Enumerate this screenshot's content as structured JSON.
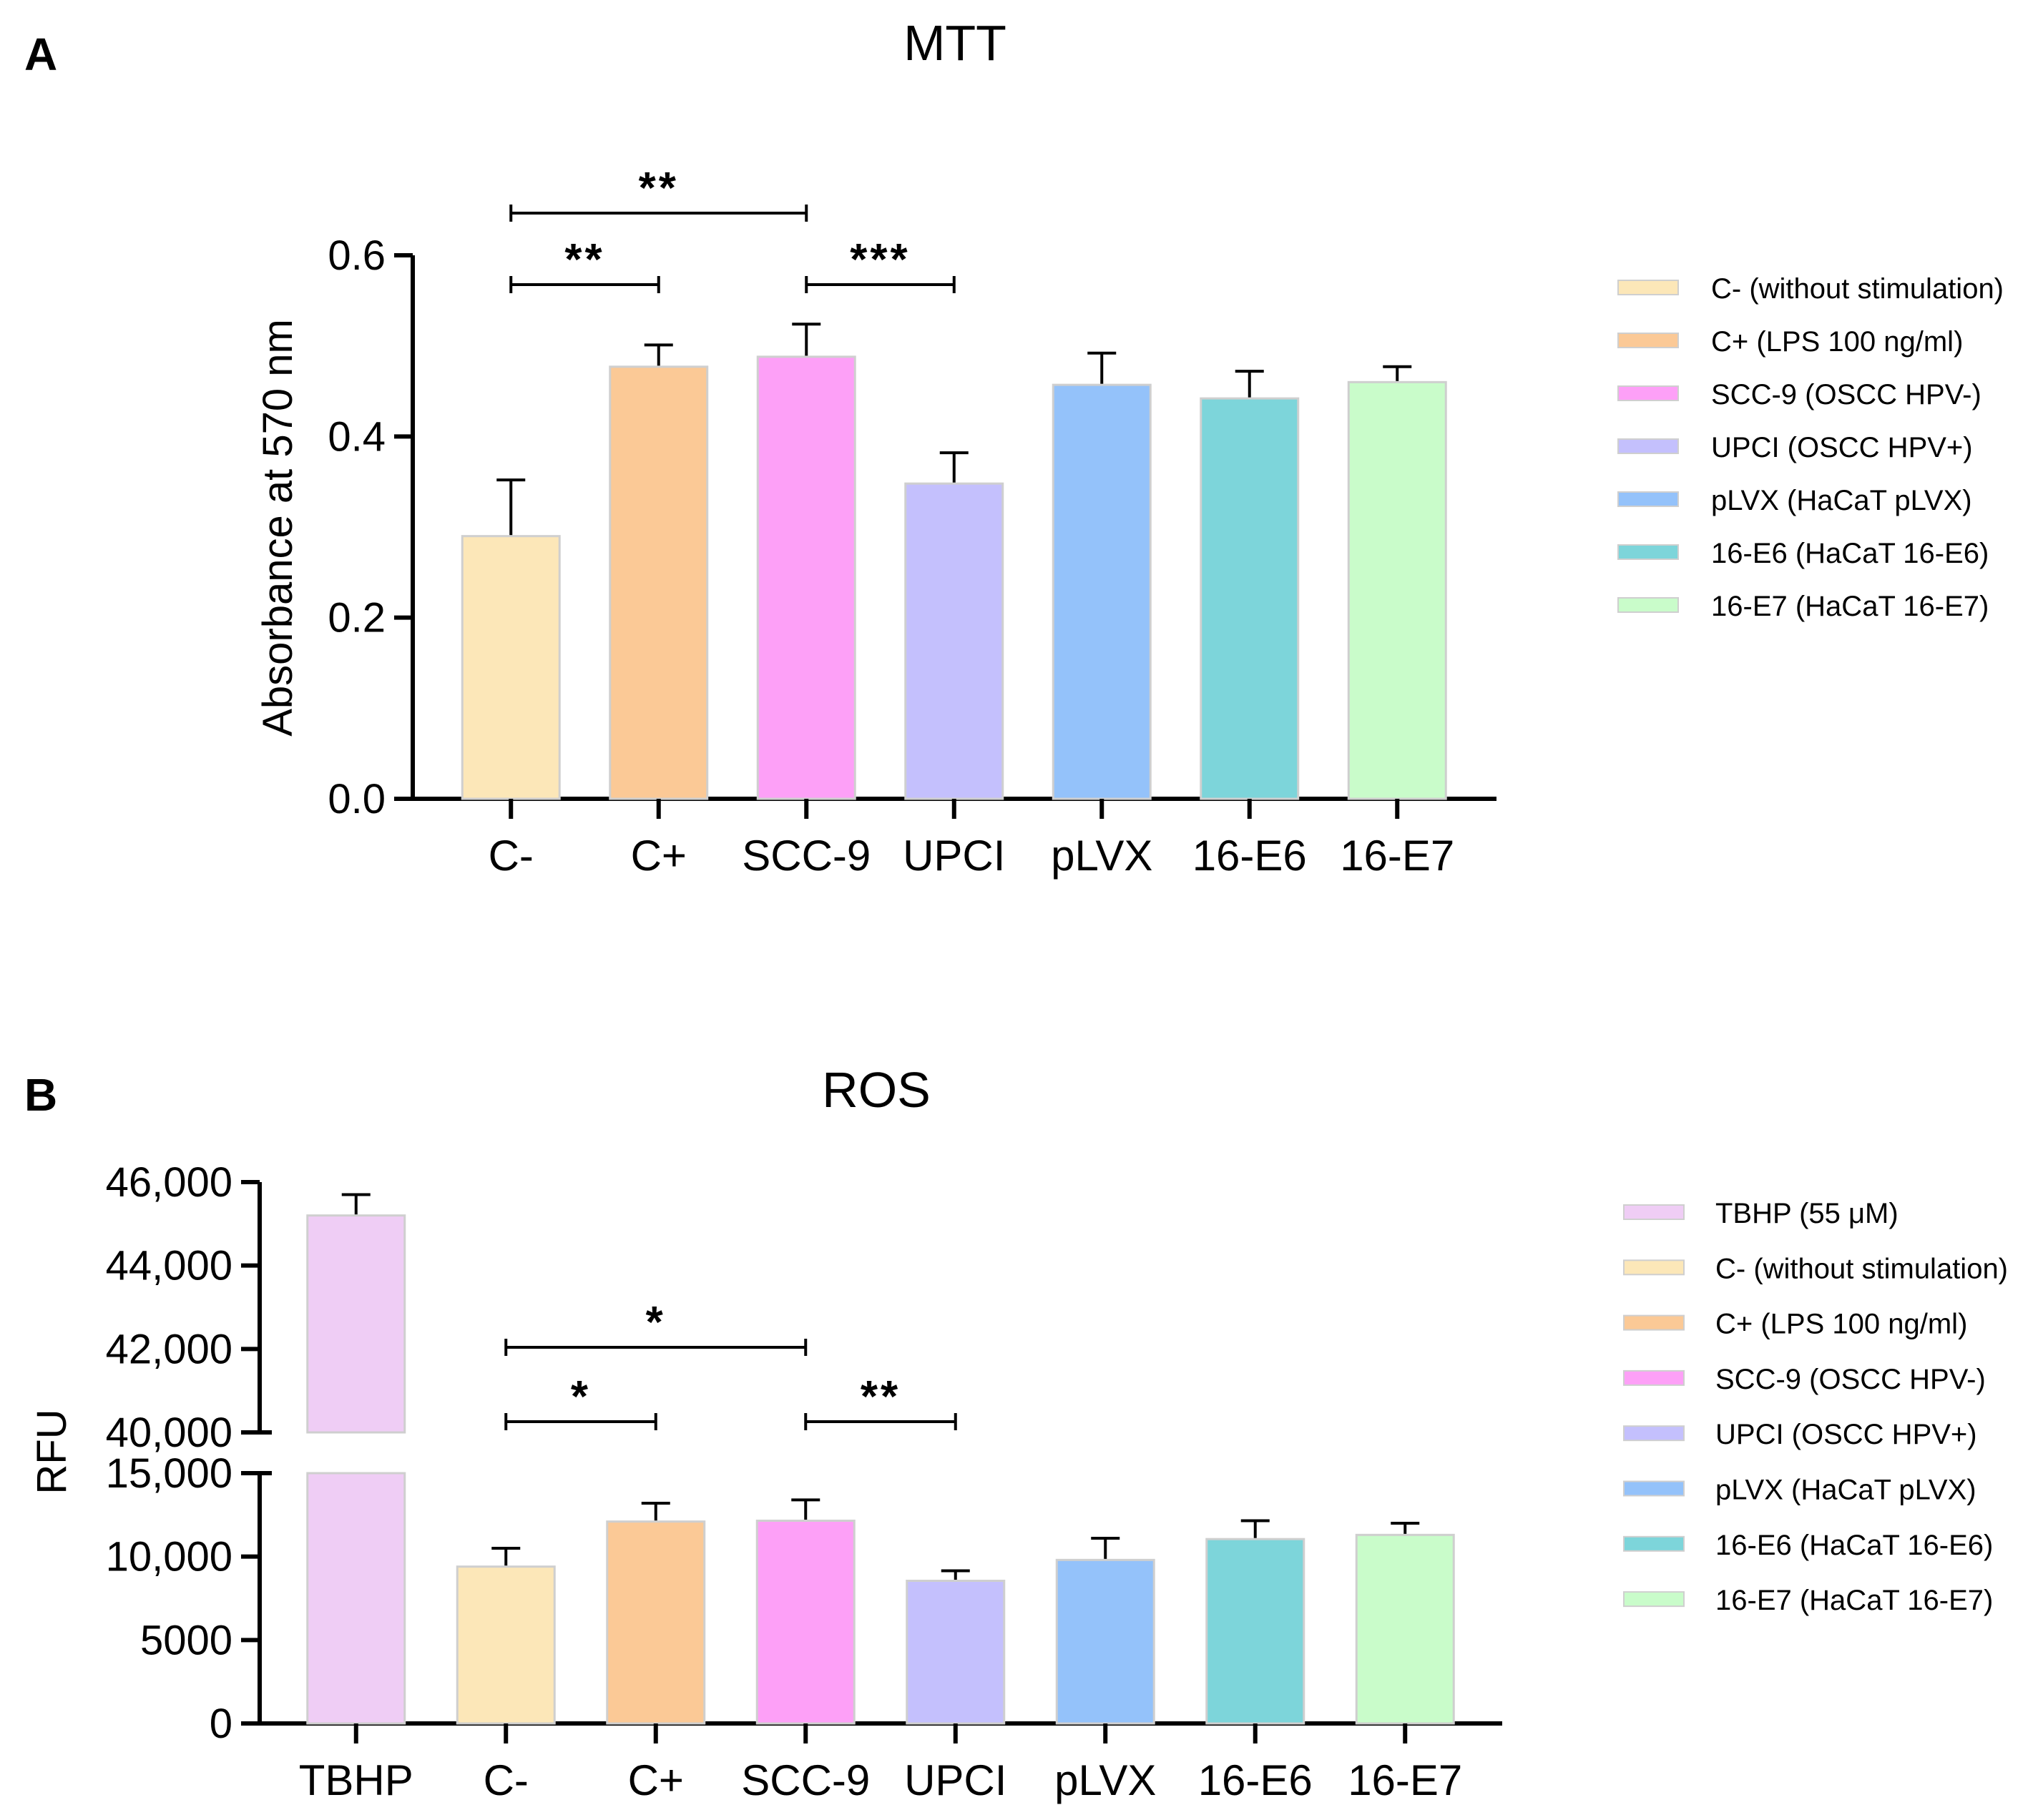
{
  "chart_data": [
    {
      "panel_label": "A",
      "type": "bar",
      "title": "MTT",
      "xlabel": "",
      "ylabel": "Absorbance at 570 nm",
      "ylim": [
        0,
        0.6
      ],
      "yticks": [
        0.0,
        0.2,
        0.4,
        0.6
      ],
      "ytick_labels": [
        "0.0",
        "0.2",
        "0.4",
        "0.6"
      ],
      "categories": [
        "C-",
        "C+",
        "SCC-9",
        "UPCI",
        "pLVX",
        "16-E6",
        "16-E7"
      ],
      "values": [
        0.29,
        0.477,
        0.488,
        0.348,
        0.457,
        0.442,
        0.46
      ],
      "errors": [
        0.062,
        0.024,
        0.036,
        0.034,
        0.035,
        0.03,
        0.017
      ],
      "colors": [
        "#fce7b8",
        "#fbc996",
        "#fda0f7",
        "#c4c0fd",
        "#94c2fa",
        "#7dd5da",
        "#c9fcca"
      ],
      "legend": [
        "C- (without stimulation)",
        "C+ (LPS 100 ng/ml)",
        "SCC-9 (OSCC HPV-)",
        "UPCI (OSCC HPV+)",
        "pLVX (HaCaT pLVX)",
        "16-E6 (HaCaT 16-E6)",
        "16-E7 (HaCaT 16-E7)"
      ],
      "legend_position": "right",
      "significance": [
        {
          "from": "C-",
          "to": "SCC-9",
          "label": "**",
          "level": 2
        },
        {
          "from": "C-",
          "to": "C+",
          "label": "**",
          "level": 1
        },
        {
          "from": "SCC-9",
          "to": "UPCI",
          "label": "***",
          "level": 1
        }
      ]
    },
    {
      "panel_label": "B",
      "type": "bar",
      "title": "ROS",
      "xlabel": "",
      "ylabel": "RFU",
      "axis_break": {
        "lower_range": [
          0,
          15000
        ],
        "upper_range": [
          40000,
          46000
        ]
      },
      "yticks_lower": [
        0,
        5000,
        10000,
        15000
      ],
      "ytick_labels_lower": [
        "0",
        "5000",
        "10,000",
        "15,000"
      ],
      "yticks_upper": [
        40000,
        42000,
        44000,
        46000
      ],
      "ytick_labels_upper": [
        "40,000",
        "42,000",
        "44,000",
        "46,000"
      ],
      "categories": [
        "TBHP",
        "C-",
        "C+",
        "SCC-9",
        "UPCI",
        "pLVX",
        "16-E6",
        "16-E7"
      ],
      "values": [
        45200,
        9400,
        12100,
        12150,
        8550,
        9800,
        11050,
        11300
      ],
      "errors": [
        500,
        1100,
        1100,
        1250,
        600,
        1300,
        1100,
        700
      ],
      "colors": [
        "#efcdf5",
        "#fce7b8",
        "#fbc996",
        "#fda0f7",
        "#c4c0fd",
        "#94c2fa",
        "#7dd5da",
        "#c9fcca"
      ],
      "legend": [
        "TBHP (55 μM)",
        "C- (without stimulation)",
        "C+ (LPS 100 ng/ml)",
        "SCC-9 (OSCC HPV-)",
        "UPCI (OSCC HPV+)",
        "pLVX (HaCaT pLVX)",
        "16-E6 (HaCaT 16-E6)",
        "16-E7 (HaCaT 16-E7)"
      ],
      "legend_position": "right",
      "significance": [
        {
          "from": "C-",
          "to": "SCC-9",
          "label": "*",
          "level": 2
        },
        {
          "from": "C-",
          "to": "C+",
          "label": "*",
          "level": 1
        },
        {
          "from": "SCC-9",
          "to": "UPCI",
          "label": "**",
          "level": 1
        }
      ]
    }
  ]
}
